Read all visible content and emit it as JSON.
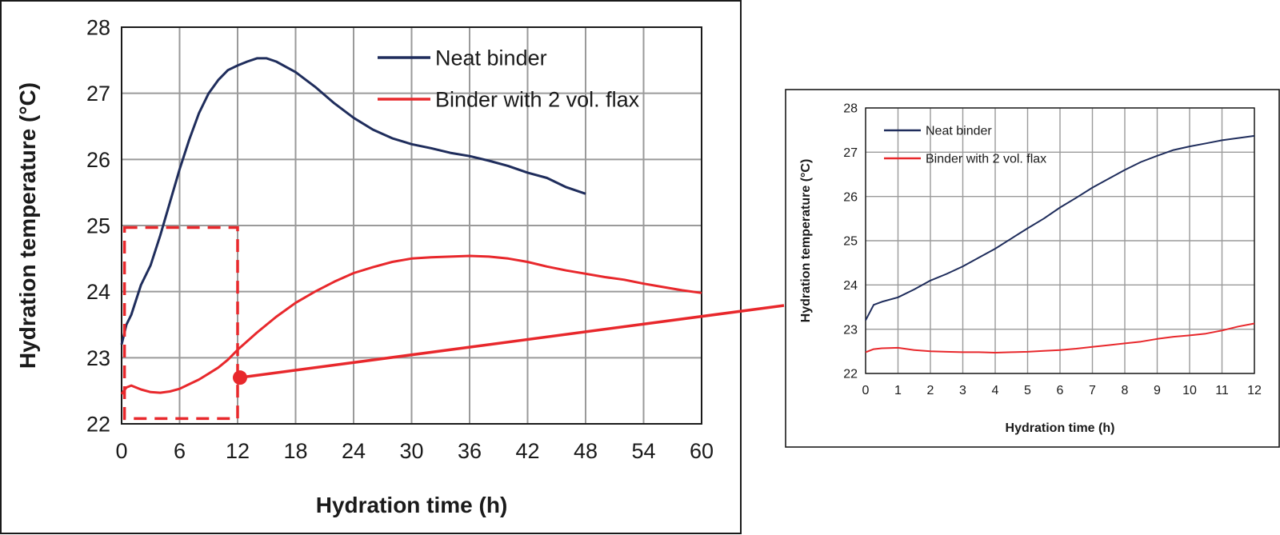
{
  "colors": {
    "neat": "#1f2d5c",
    "flax": "#e8282c",
    "grid": "#9a9a9a",
    "frame": "#1a1a1a",
    "callout": "#e8282c"
  },
  "chart_data": [
    {
      "type": "line",
      "xlabel": "Hydration time (h)",
      "ylabel": "Hydration temperature (°C)",
      "xlim": [
        0,
        60
      ],
      "ylim": [
        22,
        28
      ],
      "xticks": [
        "0",
        "6",
        "12",
        "18",
        "24",
        "30",
        "36",
        "42",
        "48",
        "54",
        "60"
      ],
      "yticks": [
        "22",
        "23",
        "24",
        "25",
        "26",
        "27",
        "28"
      ],
      "grid": true,
      "legend_position": "top-right",
      "series": [
        {
          "name": "Neat binder",
          "color_key": "neat",
          "x": [
            0,
            0.5,
            1,
            2,
            3,
            4,
            5,
            6,
            7,
            8,
            9,
            10,
            11,
            12,
            13,
            14,
            15,
            16,
            18,
            20,
            22,
            24,
            26,
            28,
            30,
            32,
            34,
            36,
            38,
            40,
            42,
            44,
            46,
            48
          ],
          "y": [
            23.2,
            23.5,
            23.65,
            24.1,
            24.4,
            24.85,
            25.35,
            25.85,
            26.3,
            26.7,
            27.0,
            27.2,
            27.35,
            27.42,
            27.48,
            27.53,
            27.53,
            27.48,
            27.32,
            27.1,
            26.85,
            26.63,
            26.45,
            26.32,
            26.23,
            26.17,
            26.1,
            26.05,
            25.98,
            25.9,
            25.8,
            25.72,
            25.58,
            25.48
          ]
        },
        {
          "name": "Binder with 2 vol. flax",
          "color_key": "flax",
          "x": [
            0,
            0.5,
            1,
            2,
            3,
            4,
            5,
            6,
            7,
            8,
            9,
            10,
            11,
            12,
            14,
            16,
            18,
            20,
            22,
            24,
            26,
            28,
            30,
            32,
            34,
            36,
            38,
            40,
            42,
            44,
            46,
            48,
            50,
            52,
            54,
            56,
            58,
            60
          ],
          "y": [
            22.45,
            22.55,
            22.58,
            22.52,
            22.48,
            22.47,
            22.49,
            22.53,
            22.6,
            22.67,
            22.76,
            22.85,
            22.97,
            23.12,
            23.38,
            23.62,
            23.83,
            24.0,
            24.15,
            24.28,
            24.37,
            24.45,
            24.5,
            24.52,
            24.53,
            24.54,
            24.53,
            24.5,
            24.45,
            24.38,
            24.32,
            24.27,
            24.22,
            24.18,
            24.12,
            24.07,
            24.02,
            23.98
          ]
        }
      ],
      "highlight_box": {
        "x": [
          0.3,
          12
        ],
        "y": [
          22.08,
          24.97
        ]
      }
    },
    {
      "type": "line",
      "xlabel": "Hydration time (h)",
      "ylabel": "Hydration temperature (°C)",
      "xlim": [
        0,
        12
      ],
      "ylim": [
        22,
        28
      ],
      "xticks": [
        "0",
        "1",
        "2",
        "3",
        "4",
        "5",
        "6",
        "7",
        "8",
        "9",
        "10",
        "11",
        "12"
      ],
      "yticks": [
        "22",
        "23",
        "24",
        "25",
        "26",
        "27",
        "28"
      ],
      "grid": true,
      "legend_position": "top-left",
      "series": [
        {
          "name": "Neat binder",
          "color_key": "neat",
          "x": [
            0,
            0.25,
            0.5,
            1,
            1.5,
            2,
            2.5,
            3,
            3.5,
            4,
            4.5,
            5,
            5.5,
            6,
            6.5,
            7,
            7.5,
            8,
            8.5,
            9,
            9.5,
            10,
            10.5,
            11,
            11.5,
            12
          ],
          "y": [
            23.2,
            23.55,
            23.62,
            23.72,
            23.9,
            24.1,
            24.25,
            24.42,
            24.62,
            24.82,
            25.05,
            25.28,
            25.5,
            25.75,
            25.97,
            26.2,
            26.4,
            26.6,
            26.78,
            26.92,
            27.05,
            27.13,
            27.2,
            27.27,
            27.32,
            27.37
          ]
        },
        {
          "name": "Binder with 2 vol. flax",
          "color_key": "flax",
          "x": [
            0,
            0.25,
            0.5,
            1,
            1.5,
            2,
            2.5,
            3,
            3.5,
            4,
            4.5,
            5,
            5.5,
            6,
            6.5,
            7,
            7.5,
            8,
            8.5,
            9,
            9.5,
            10,
            10.5,
            11,
            11.5,
            12
          ],
          "y": [
            22.48,
            22.55,
            22.57,
            22.58,
            22.53,
            22.5,
            22.49,
            22.48,
            22.48,
            22.47,
            22.48,
            22.49,
            22.51,
            22.53,
            22.56,
            22.6,
            22.64,
            22.68,
            22.72,
            22.78,
            22.83,
            22.86,
            22.9,
            22.97,
            23.06,
            23.13
          ]
        }
      ]
    }
  ]
}
